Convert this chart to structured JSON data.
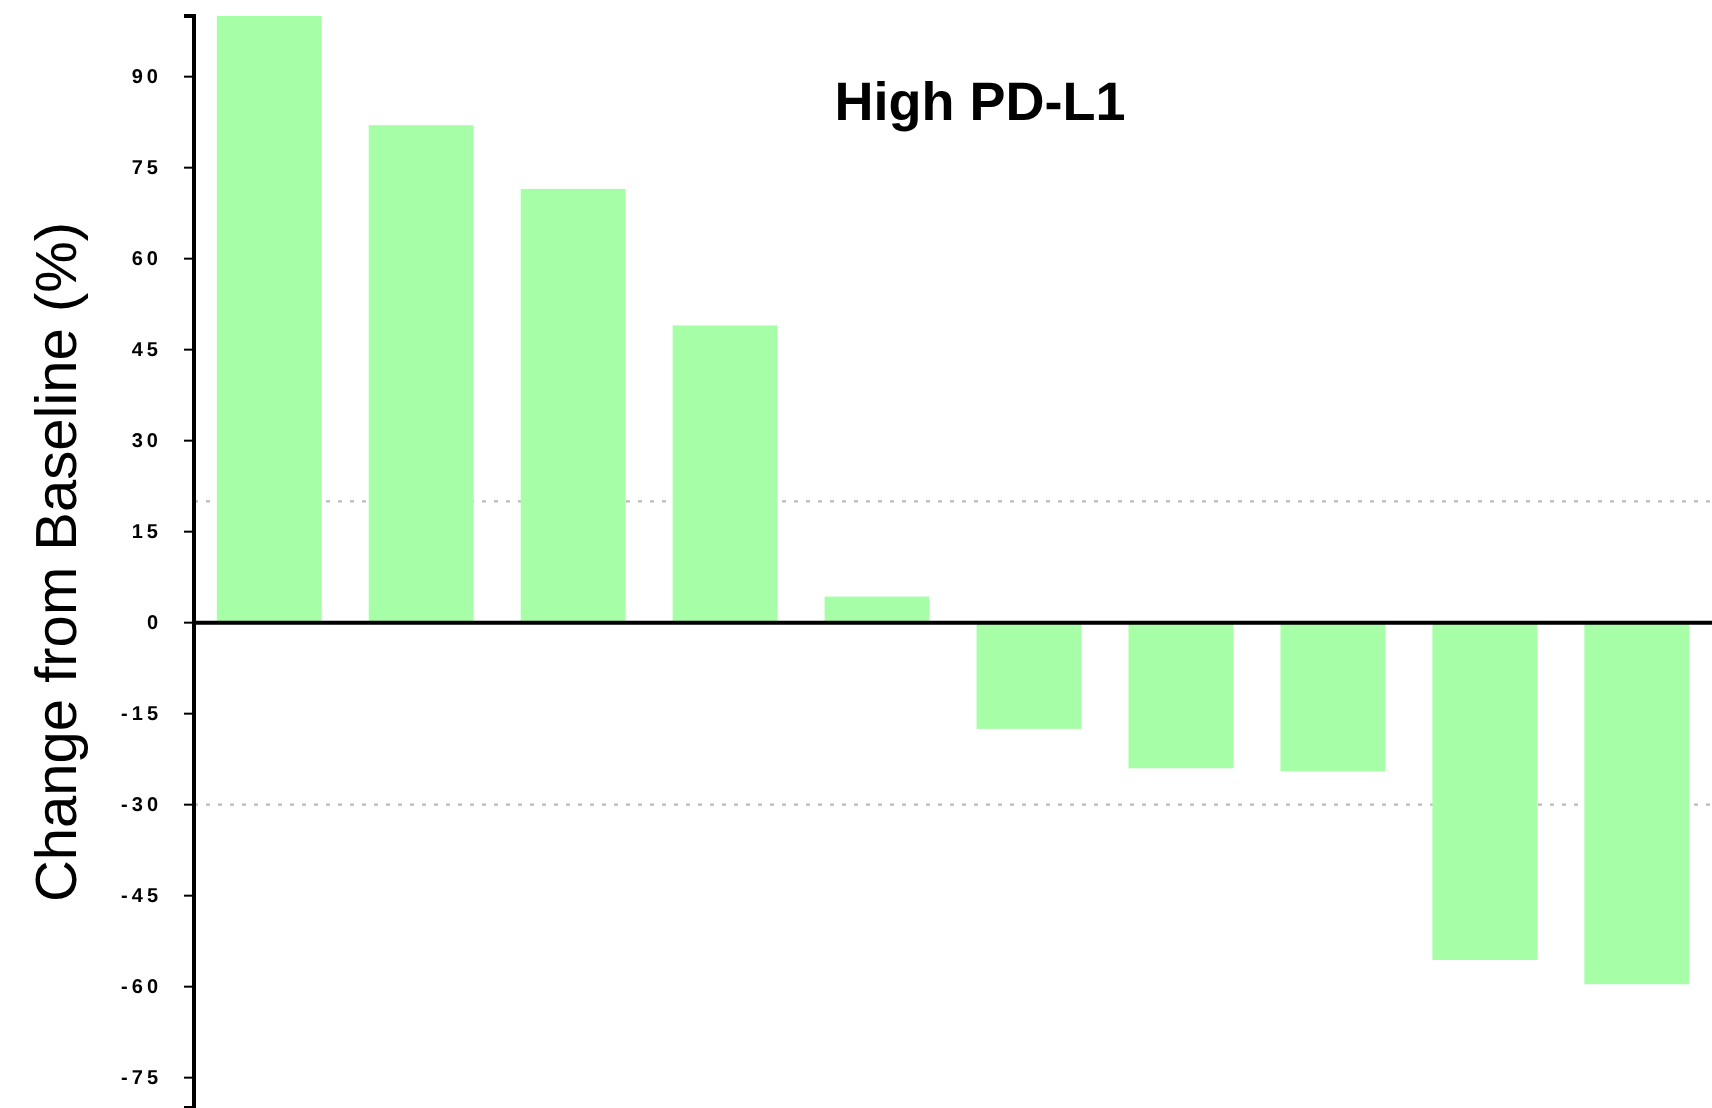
{
  "chart_data": {
    "type": "bar",
    "title": "High PD-L1",
    "ylabel": "Change from Baseline (%)",
    "categories": [
      null,
      null,
      null,
      null,
      null,
      null,
      null,
      null,
      null,
      null
    ],
    "values": [
      100,
      82,
      71.5,
      49,
      4.3,
      -17.5,
      -24,
      -24.5,
      -55.6,
      -59.6
    ],
    "color": "#a6ffa6",
    "ylim": [
      -80,
      100
    ],
    "yticks": [
      -75,
      -60,
      -45,
      -30,
      -15,
      0,
      15,
      30,
      45,
      60,
      75,
      90
    ],
    "ref_lines": [
      {
        "axis": "y",
        "value": 20,
        "color": "#bbbbbb",
        "line_style": "dotted"
      },
      {
        "axis": "y",
        "value": -30,
        "color": "#bbbbbb",
        "line_style": "dotted"
      }
    ],
    "tick_labels": "y",
    "grid": false
  }
}
